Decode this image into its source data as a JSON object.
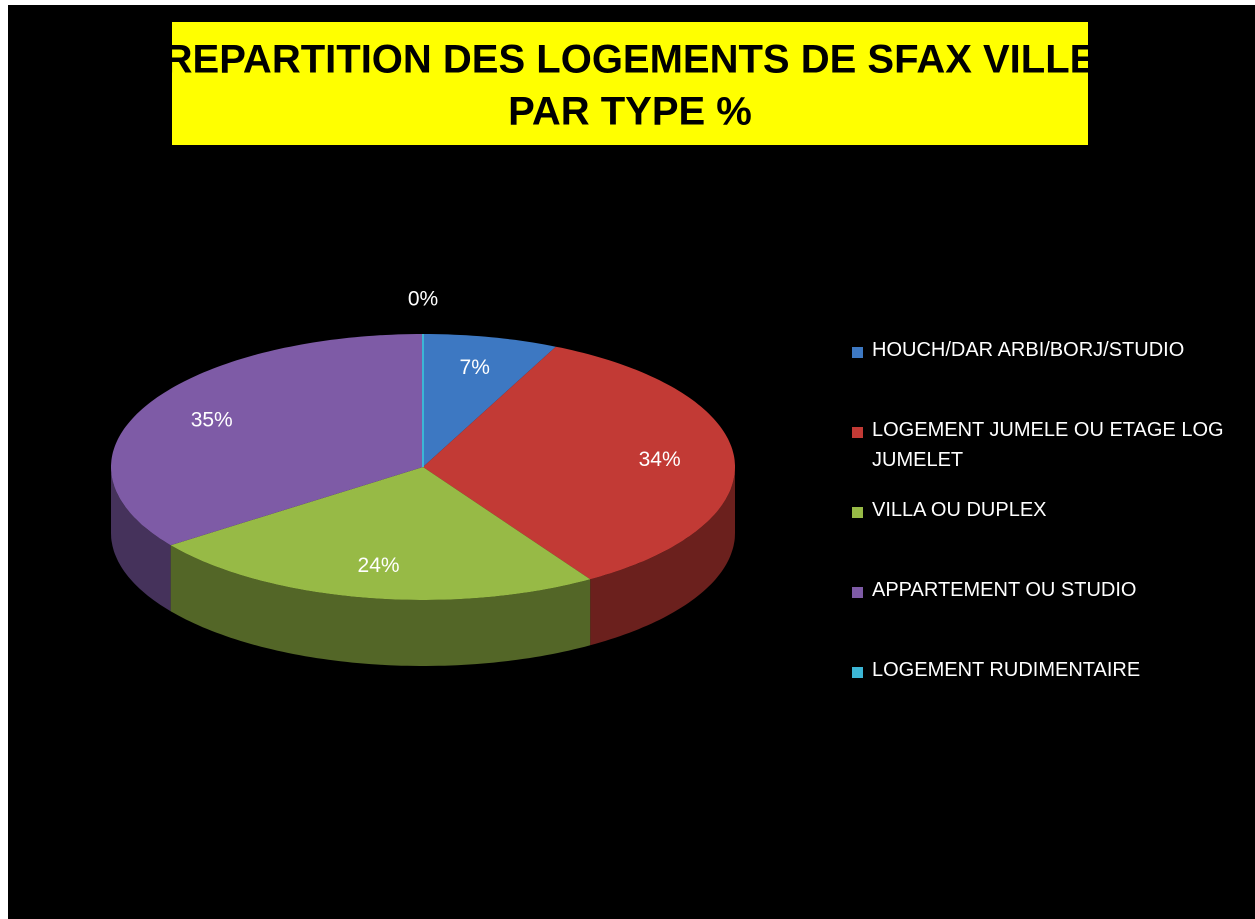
{
  "chart_data": {
    "type": "pie",
    "title": [
      "REPARTITION DES LOGEMENTS DE SFAX VILLE",
      "PAR TYPE %"
    ],
    "categories": [
      "HOUCH/DAR ARBI/BORJ/STUDIO",
      "LOGEMENT JUMELE OU ETAGE LOG JUMELET",
      "VILLA OU DUPLEX",
      "APPARTEMENT OU STUDIO",
      "LOGEMENT RUDIMENTAIRE"
    ],
    "values": [
      7,
      34,
      24,
      35,
      0
    ],
    "value_labels": [
      "7%",
      "34%",
      "24%",
      "35%",
      "0%"
    ],
    "colors": [
      "#3d78c2",
      "#c23a35",
      "#97ba46",
      "#7e5ba6",
      "#3cb6d5"
    ],
    "legend": "right"
  }
}
